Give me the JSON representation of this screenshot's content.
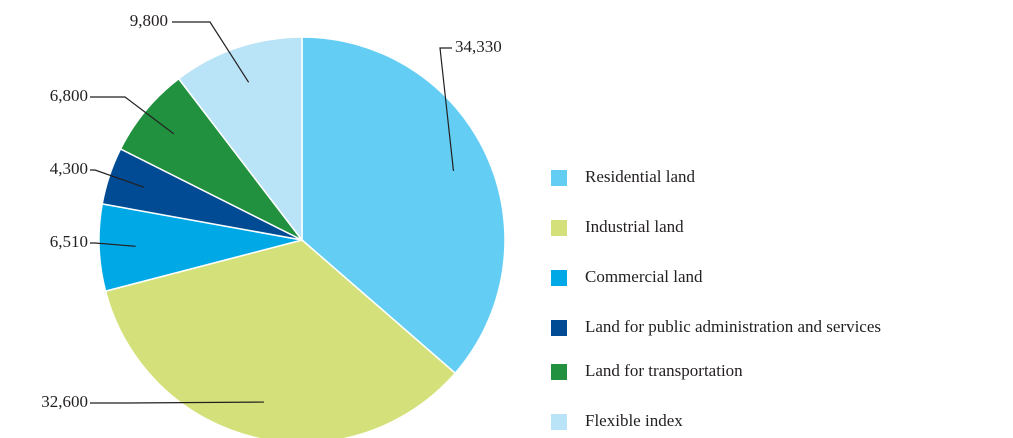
{
  "chart_data": {
    "type": "pie",
    "categories": [
      "Residential land",
      "Industrial land",
      "Commercial land",
      "Land for  public administration and services",
      "Land for transportation",
      "Flexible index"
    ],
    "values": [
      34330,
      32600,
      6510,
      4300,
      6800,
      9800
    ],
    "value_labels": [
      "34,330",
      "32,600",
      "6,510",
      "4,300",
      "6,800",
      "9,800"
    ],
    "colors": [
      "#63cdf4",
      "#d4e17a",
      "#00a9e6",
      "#004b93",
      "#21913f",
      "#b9e3f6"
    ],
    "legend": "right"
  }
}
